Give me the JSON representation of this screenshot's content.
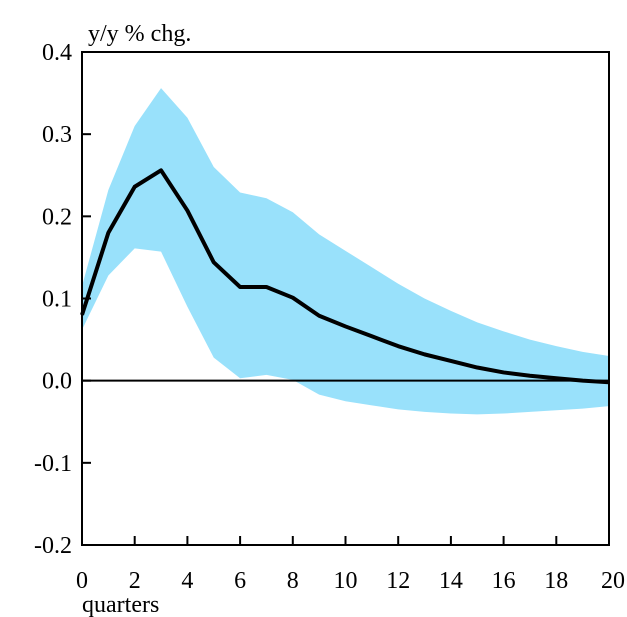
{
  "chart_data": {
    "type": "line",
    "title": "",
    "ylabel": "y/y % chg.",
    "xlabel": "quarters",
    "xlim": [
      0,
      20
    ],
    "ylim": [
      -0.2,
      0.4
    ],
    "grid": false,
    "x_ticks": [
      0,
      2,
      4,
      6,
      8,
      10,
      12,
      14,
      16,
      18,
      20
    ],
    "y_ticks": [
      0.4,
      0.3,
      0.2,
      0.1,
      0.0,
      -0.1,
      -0.2
    ],
    "x_tick_labels": [
      "0",
      "2",
      "4",
      "6",
      "8",
      "10",
      "12",
      "14",
      "16",
      "18",
      "20"
    ],
    "y_tick_labels": [
      "0.4",
      "0.3",
      "0.2",
      "0.1",
      "0.0",
      "-0.1",
      "-0.2"
    ],
    "colors": {
      "band": "#99e1fb",
      "line": "#000000",
      "axis": "#000000"
    },
    "series": [
      {
        "style": "line",
        "x": [
          0,
          1,
          2,
          3,
          4,
          5,
          6,
          7,
          8,
          9,
          10,
          11,
          12,
          13,
          14,
          15,
          16,
          17,
          18,
          19,
          20
        ],
        "values": [
          0.08,
          0.18,
          0.236,
          0.256,
          0.207,
          0.144,
          0.114,
          0.114,
          0.101,
          0.079,
          0.066,
          0.054,
          0.042,
          0.032,
          0.024,
          0.016,
          0.01,
          0.006,
          0.003,
          0.0,
          -0.002
        ]
      },
      {
        "style": "band",
        "x": [
          0,
          1,
          2,
          3,
          4,
          5,
          6,
          7,
          8,
          9,
          10,
          11,
          12,
          13,
          14,
          15,
          16,
          17,
          18,
          19,
          20
        ],
        "upper": [
          0.115,
          0.232,
          0.31,
          0.356,
          0.32,
          0.26,
          0.229,
          0.222,
          0.205,
          0.178,
          0.158,
          0.138,
          0.118,
          0.1,
          0.085,
          0.071,
          0.06,
          0.05,
          0.042,
          0.035,
          0.03
        ],
        "lower": [
          0.062,
          0.128,
          0.161,
          0.157,
          0.09,
          0.028,
          0.003,
          0.007,
          0.001,
          -0.017,
          -0.025,
          -0.03,
          -0.035,
          -0.038,
          -0.04,
          -0.041,
          -0.04,
          -0.038,
          -0.036,
          -0.034,
          -0.031
        ]
      }
    ]
  }
}
